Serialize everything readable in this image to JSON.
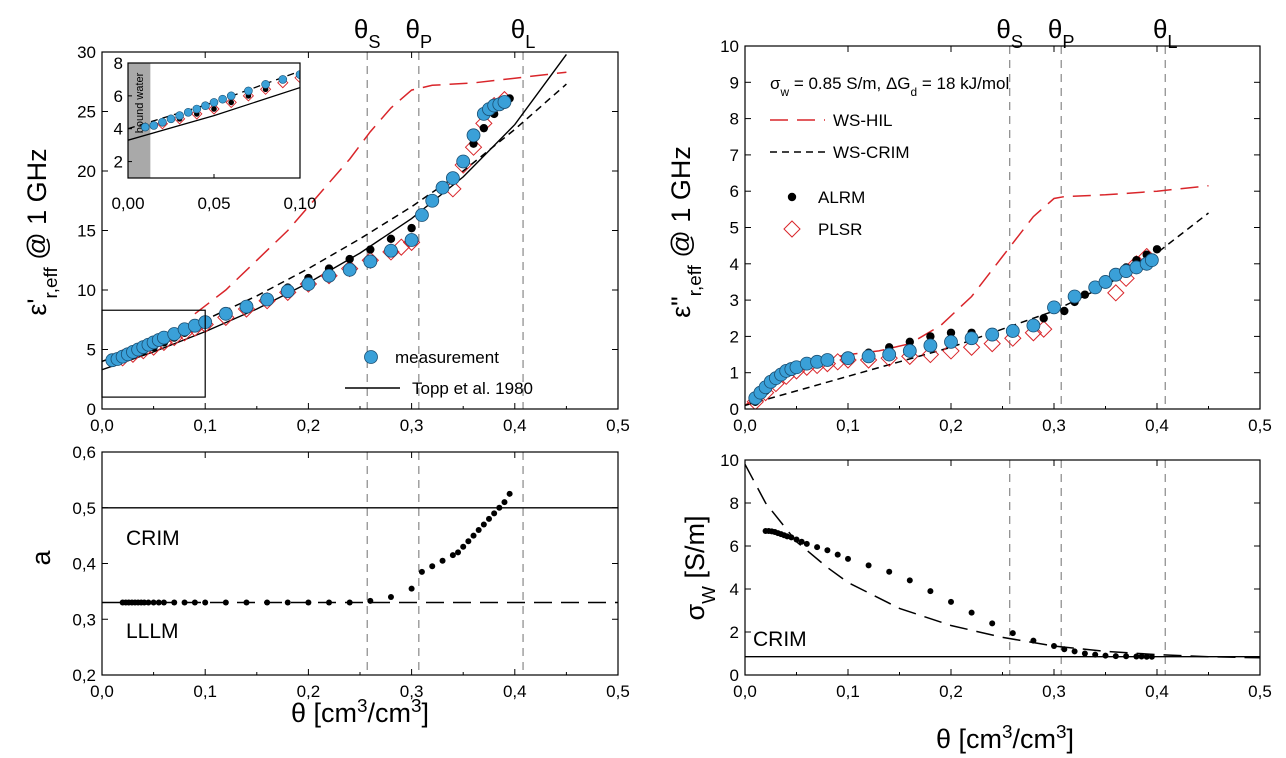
{
  "threshold_labels": [
    {
      "text": "θS",
      "x": 0.257
    },
    {
      "text": "θP",
      "x": 0.307
    },
    {
      "text": "θL",
      "x": 0.408
    }
  ],
  "colors": {
    "measurement_fill": "#3aa0d8",
    "plsr": "#d9252a",
    "ws_hil": "#d9252a",
    "black": "#000000",
    "gray_band": "#a9a9a9",
    "vline": "#888888"
  },
  "chart_data": [
    {
      "id": "A",
      "type": "scatter",
      "xlabel": "θ [cm³/cm³]",
      "ylabel": "ε'r,eff @ 1 GHz",
      "xlim": [
        0,
        0.5
      ],
      "ylim": [
        0,
        30
      ],
      "xticks": [
        "0,0",
        "0,1",
        "0,2",
        "0,3",
        "0,4",
        "0,5"
      ],
      "yticks": [
        "0",
        "5",
        "10",
        "15",
        "20",
        "25",
        "30"
      ],
      "legend": {
        "position": "bottom-right",
        "entries": [
          "measurement",
          "Topp et al. 1980"
        ]
      },
      "series": [
        {
          "name": "measurement",
          "marker": "circle-blue",
          "x": [
            0.01,
            0.015,
            0.02,
            0.025,
            0.03,
            0.035,
            0.04,
            0.045,
            0.05,
            0.055,
            0.06,
            0.07,
            0.08,
            0.09,
            0.1,
            0.12,
            0.14,
            0.16,
            0.18,
            0.2,
            0.22,
            0.24,
            0.26,
            0.28,
            0.3,
            0.31,
            0.32,
            0.33,
            0.34,
            0.35,
            0.36,
            0.37,
            0.375,
            0.38,
            0.385,
            0.39
          ],
          "y": [
            4.1,
            4.2,
            4.4,
            4.6,
            4.8,
            5,
            5.2,
            5.4,
            5.6,
            5.8,
            6,
            6.3,
            6.7,
            7,
            7.3,
            8,
            8.6,
            9.2,
            9.9,
            10.5,
            11.2,
            11.7,
            12.4,
            13.3,
            14.2,
            16.3,
            17.5,
            18.6,
            19.4,
            20.8,
            23,
            24.8,
            25.2,
            25.5,
            25.6,
            25.8
          ]
        },
        {
          "name": "ALRM",
          "marker": "dot-black",
          "x": [
            0.01,
            0.02,
            0.03,
            0.04,
            0.05,
            0.06,
            0.07,
            0.08,
            0.1,
            0.12,
            0.14,
            0.16,
            0.18,
            0.2,
            0.22,
            0.24,
            0.26,
            0.28,
            0.3,
            0.31,
            0.32,
            0.33,
            0.34,
            0.35,
            0.36,
            0.37,
            0.38,
            0.39,
            0.395
          ],
          "y": [
            4.1,
            4.3,
            4.6,
            4.9,
            5.2,
            5.6,
            6,
            6.4,
            7.2,
            8,
            8.7,
            9.4,
            10.2,
            11,
            11.8,
            12.6,
            13.4,
            14.3,
            15.2,
            16.3,
            17.4,
            18.5,
            19.6,
            20.8,
            22.3,
            23.6,
            24.8,
            25.6,
            26.1
          ]
        },
        {
          "name": "PLSR",
          "marker": "diamond-red",
          "x": [
            0.02,
            0.03,
            0.04,
            0.05,
            0.06,
            0.07,
            0.08,
            0.09,
            0.1,
            0.12,
            0.14,
            0.16,
            0.18,
            0.2,
            0.22,
            0.24,
            0.26,
            0.28,
            0.29,
            0.3,
            0.34,
            0.35,
            0.36,
            0.37,
            0.38,
            0.39
          ],
          "y": [
            4.3,
            4.6,
            4.9,
            5.2,
            5.6,
            6,
            6.4,
            6.8,
            7.1,
            7.7,
            8.4,
            9.1,
            9.8,
            10.5,
            11.2,
            11.8,
            12.5,
            13.2,
            13.6,
            14,
            18.5,
            20.5,
            22,
            24,
            25.5,
            26
          ]
        },
        {
          "name": "WS-HIL",
          "type": "line",
          "style": "long-dash-red",
          "x": [
            0.09,
            0.12,
            0.15,
            0.18,
            0.2,
            0.22,
            0.24,
            0.26,
            0.28,
            0.3,
            0.32,
            0.36,
            0.4,
            0.45
          ],
          "y": [
            8,
            10,
            12.5,
            15,
            17,
            19,
            21,
            23.3,
            25.3,
            26.8,
            27.2,
            27.4,
            27.8,
            28.3
          ]
        },
        {
          "name": "WS-CRIM",
          "type": "line",
          "style": "dash-black",
          "x": [
            0,
            0.05,
            0.1,
            0.15,
            0.2,
            0.25,
            0.3,
            0.35,
            0.4,
            0.45
          ],
          "y": [
            4,
            5.6,
            7.5,
            9.5,
            11.8,
            14.3,
            17,
            20,
            23.5,
            27.3
          ]
        },
        {
          "name": "Topp et al. 1980",
          "type": "line",
          "style": "solid-black",
          "x": [
            0,
            0.05,
            0.1,
            0.15,
            0.2,
            0.25,
            0.3,
            0.35,
            0.4,
            0.45
          ],
          "y": [
            3.3,
            4.8,
            6.5,
            8.4,
            10.6,
            13.1,
            16,
            19.5,
            23.9,
            29.8
          ]
        }
      ],
      "zoom_box": {
        "x": [
          0,
          0.1
        ],
        "y": [
          1,
          8.3
        ]
      },
      "inset": {
        "xlim": [
          0,
          0.1
        ],
        "ylim": [
          1,
          8
        ],
        "xticks": [
          "0,00",
          "0,05",
          "0,10"
        ],
        "yticks": [
          "2",
          "4",
          "6",
          "8"
        ],
        "band_label": "bound water",
        "band_x": [
          0,
          0.013
        ]
      }
    },
    {
      "id": "B",
      "type": "scatter",
      "xlabel": "",
      "ylabel": "ε\"r,eff @ 1 GHz",
      "xlim": [
        0,
        0.5
      ],
      "ylim": [
        0,
        10
      ],
      "xticks": [
        "0,0",
        "0,1",
        "0,2",
        "0,3",
        "0,4",
        "0,5"
      ],
      "yticks": [
        "0",
        "1",
        "2",
        "3",
        "4",
        "5",
        "6",
        "7",
        "8",
        "9",
        "10"
      ],
      "annotation": "σw = 0.85 S/m, ΔGd = 18 kJ/mol",
      "legend": {
        "position": "top-left",
        "entries": [
          "WS-HIL",
          "WS-CRIM",
          "ALRM",
          "PLSR"
        ]
      },
      "series": [
        {
          "name": "measurement",
          "marker": "circle-blue",
          "x": [
            0.01,
            0.015,
            0.02,
            0.025,
            0.03,
            0.035,
            0.04,
            0.045,
            0.05,
            0.06,
            0.07,
            0.08,
            0.1,
            0.12,
            0.14,
            0.16,
            0.18,
            0.2,
            0.22,
            0.24,
            0.26,
            0.28,
            0.3,
            0.32,
            0.34,
            0.35,
            0.36,
            0.37,
            0.38,
            0.39,
            0.395
          ],
          "y": [
            0.3,
            0.45,
            0.6,
            0.75,
            0.85,
            0.95,
            1.05,
            1.1,
            1.15,
            1.25,
            1.3,
            1.35,
            1.4,
            1.45,
            1.5,
            1.6,
            1.75,
            1.85,
            1.95,
            2.05,
            2.15,
            2.3,
            2.8,
            3.1,
            3.35,
            3.5,
            3.7,
            3.8,
            3.9,
            4,
            4.1
          ]
        },
        {
          "name": "ALRM",
          "marker": "dot-black",
          "x": [
            0.01,
            0.02,
            0.03,
            0.04,
            0.05,
            0.06,
            0.07,
            0.08,
            0.1,
            0.12,
            0.14,
            0.16,
            0.18,
            0.2,
            0.22,
            0.24,
            0.26,
            0.28,
            0.29,
            0.31,
            0.32,
            0.33,
            0.34,
            0.35,
            0.36,
            0.37,
            0.38,
            0.39,
            0.4
          ],
          "y": [
            0.2,
            0.5,
            0.8,
            1,
            1.15,
            1.25,
            1.3,
            1.35,
            1.45,
            1.55,
            1.7,
            1.85,
            2,
            2.1,
            2.1,
            2.1,
            2.15,
            2.3,
            2.5,
            2.7,
            2.95,
            3.15,
            3.3,
            3.5,
            3.7,
            3.9,
            4.1,
            4.25,
            4.4
          ]
        },
        {
          "name": "PLSR",
          "marker": "diamond-red",
          "x": [
            0.01,
            0.02,
            0.03,
            0.04,
            0.05,
            0.06,
            0.07,
            0.08,
            0.09,
            0.1,
            0.12,
            0.14,
            0.16,
            0.18,
            0.2,
            0.22,
            0.24,
            0.26,
            0.28,
            0.29,
            0.36,
            0.37,
            0.38,
            0.39
          ],
          "y": [
            0.2,
            0.45,
            0.7,
            0.9,
            1.05,
            1.15,
            1.2,
            1.25,
            1.3,
            1.35,
            1.35,
            1.4,
            1.45,
            1.5,
            1.6,
            1.7,
            1.8,
            1.95,
            2.1,
            2.2,
            3.2,
            3.6,
            4,
            4.2
          ]
        },
        {
          "name": "WS-HIL",
          "type": "line",
          "style": "long-dash-red",
          "x": [
            0,
            0.02,
            0.04,
            0.06,
            0.08,
            0.1,
            0.13,
            0.16,
            0.19,
            0.22,
            0.25,
            0.28,
            0.3,
            0.31,
            0.35,
            0.4,
            0.45
          ],
          "y": [
            0.1,
            0.5,
            0.9,
            1.2,
            1.4,
            1.5,
            1.6,
            1.8,
            2.3,
            3.1,
            4.2,
            5.3,
            5.8,
            5.85,
            5.9,
            6,
            6.15
          ]
        },
        {
          "name": "WS-CRIM",
          "type": "line",
          "style": "dash-black",
          "x": [
            0,
            0.05,
            0.1,
            0.15,
            0.2,
            0.25,
            0.3,
            0.35,
            0.4,
            0.45
          ],
          "y": [
            0.1,
            0.5,
            0.9,
            1.3,
            1.7,
            2.2,
            2.7,
            3.4,
            4.3,
            5.4
          ]
        }
      ]
    },
    {
      "id": "C",
      "type": "scatter",
      "xlabel": "θ [cm³/cm³]",
      "ylabel": "a",
      "xlim": [
        0,
        0.5
      ],
      "ylim": [
        0.2,
        0.6
      ],
      "xticks": [
        "0,0",
        "0,1",
        "0,2",
        "0,3",
        "0,4",
        "0,5"
      ],
      "yticks": [
        "0,2",
        "0,3",
        "0,4",
        "0,5",
        "0,6"
      ],
      "labels": [
        "CRIM",
        "LLLM"
      ],
      "series": [
        {
          "name": "a",
          "marker": "dot-black",
          "x": [
            0.02,
            0.023,
            0.026,
            0.029,
            0.032,
            0.035,
            0.038,
            0.041,
            0.045,
            0.05,
            0.055,
            0.06,
            0.07,
            0.08,
            0.09,
            0.1,
            0.12,
            0.14,
            0.16,
            0.18,
            0.2,
            0.22,
            0.24,
            0.26,
            0.28,
            0.3,
            0.31,
            0.32,
            0.33,
            0.34,
            0.345,
            0.35,
            0.355,
            0.36,
            0.365,
            0.37,
            0.375,
            0.38,
            0.385,
            0.39,
            0.395
          ],
          "y": [
            0.33,
            0.33,
            0.33,
            0.33,
            0.33,
            0.33,
            0.33,
            0.33,
            0.33,
            0.33,
            0.33,
            0.33,
            0.33,
            0.33,
            0.33,
            0.33,
            0.33,
            0.33,
            0.33,
            0.33,
            0.33,
            0.33,
            0.33,
            0.333,
            0.34,
            0.355,
            0.385,
            0.395,
            0.405,
            0.415,
            0.42,
            0.43,
            0.44,
            0.45,
            0.46,
            0.47,
            0.48,
            0.49,
            0.5,
            0.51,
            0.525
          ]
        },
        {
          "name": "CRIM",
          "type": "line",
          "style": "solid-black",
          "x": [
            0,
            0.5
          ],
          "y": [
            0.5,
            0.5
          ]
        },
        {
          "name": "LLLM",
          "type": "line",
          "style": "long-dash-black",
          "x": [
            0,
            0.5
          ],
          "y": [
            0.33,
            0.33
          ]
        }
      ]
    },
    {
      "id": "D",
      "type": "scatter",
      "xlabel": "θ [cm³/cm³]",
      "ylabel": "σW [S/m]",
      "xlim": [
        0,
        0.5
      ],
      "ylim": [
        0,
        10
      ],
      "xticks": [
        "0,0",
        "0,1",
        "0,2",
        "0,3",
        "0,4",
        "0,5"
      ],
      "yticks": [
        "0",
        "2",
        "4",
        "6",
        "8",
        "10"
      ],
      "labels": [
        "CRIM"
      ],
      "series": [
        {
          "name": "σW",
          "marker": "dot-black",
          "x": [
            0.02,
            0.023,
            0.026,
            0.029,
            0.032,
            0.035,
            0.038,
            0.041,
            0.045,
            0.05,
            0.055,
            0.06,
            0.07,
            0.08,
            0.09,
            0.1,
            0.12,
            0.14,
            0.16,
            0.18,
            0.2,
            0.22,
            0.24,
            0.26,
            0.28,
            0.3,
            0.31,
            0.32,
            0.33,
            0.34,
            0.35,
            0.36,
            0.37,
            0.38,
            0.385,
            0.39,
            0.395
          ],
          "y": [
            6.7,
            6.7,
            6.68,
            6.65,
            6.6,
            6.55,
            6.5,
            6.45,
            6.4,
            6.3,
            6.2,
            6.1,
            5.95,
            5.8,
            5.6,
            5.4,
            5.1,
            4.8,
            4.4,
            3.9,
            3.4,
            2.9,
            2.4,
            1.95,
            1.6,
            1.35,
            1.2,
            1.1,
            1,
            0.95,
            0.9,
            0.88,
            0.87,
            0.86,
            0.86,
            0.85,
            0.85
          ]
        },
        {
          "name": "CRIM",
          "type": "line",
          "style": "solid-black",
          "x": [
            0,
            0.5
          ],
          "y": [
            0.85,
            0.85
          ]
        },
        {
          "name": "fit",
          "type": "line",
          "style": "long-dash-black",
          "x": [
            0,
            0.02,
            0.05,
            0.08,
            0.1,
            0.15,
            0.2,
            0.25,
            0.3,
            0.35,
            0.4,
            0.45,
            0.5
          ],
          "y": [
            9.8,
            8,
            6.2,
            5,
            4.3,
            3.1,
            2.3,
            1.75,
            1.35,
            1.1,
            0.95,
            0.85,
            0.8
          ]
        }
      ]
    }
  ]
}
